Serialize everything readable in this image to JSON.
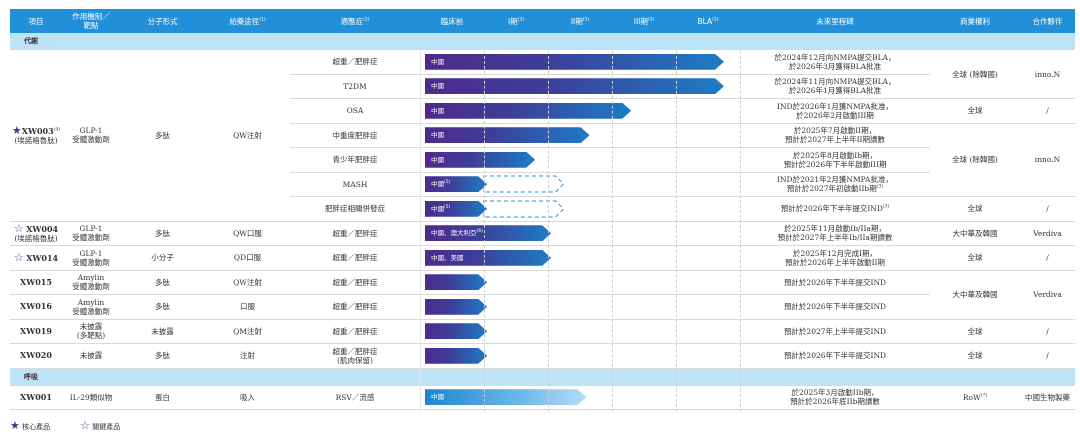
{
  "header": {
    "project": "項目",
    "mechanism": "作用機制／靶點",
    "modality": "分子形式",
    "route": "給藥途徑",
    "route_sup": "(1)",
    "indication": "適應症",
    "indication_sup": "(2)",
    "preclinical": "臨床前",
    "p1": "I期",
    "p1_sup": "(3)",
    "p2": "II期",
    "p2_sup": "(3)",
    "p3": "III期",
    "p3_sup": "(3)",
    "bla": "BLA",
    "bla_sup": "(2)",
    "milestone": "未來里程碑",
    "rights": "商業權利",
    "partner": "合作夥伴"
  },
  "sections": {
    "metabolic": "代謝",
    "respiratory": "呼吸"
  },
  "colors": {
    "header": "#2190d8",
    "section": "#bde3f7",
    "bar_start": "#4e2a8c",
    "bar_end": "#1d7cc6",
    "star": "#5b2a8c"
  },
  "phase_scale": [
    "臨床前",
    "I期",
    "II期",
    "III期",
    "BLA"
  ],
  "xw003": {
    "name": "XW003",
    "sup": "(4)",
    "alias": "(埃諾格魯肽)",
    "mech1": "GLP-1",
    "mech2": "受體激動劑",
    "modality": "多肽",
    "route": "QW注射",
    "star": "core",
    "rows": [
      {
        "indication": "超重／肥胖症",
        "region": "中國",
        "progress": 4.75,
        "m1": "於2024年12月向NMPA提交BLA，",
        "m2": "於2026年3月獲得BLA批准"
      },
      {
        "indication": "T2DM",
        "region": "中國",
        "progress": 4.75,
        "m1": "於2024年11月向NMPA提交BLA，",
        "m2": "於2026年1月獲得BLA批准"
      },
      {
        "indication": "OSA",
        "region": "中國",
        "progress": 3.3,
        "m1": "IND於2026年1月獲NMPA批准，",
        "m2": "於2026年2月啟動III期"
      },
      {
        "indication": "中重度肥胖症",
        "region": "中國",
        "progress": 2.65,
        "m1": "於2025年7月啟動II期，",
        "m2": "預計於2027年上半年II期讀數"
      },
      {
        "indication": "青少年肥胖症",
        "region": "中國",
        "progress": 1.8,
        "m1": "於2025年8月啟動Ib期，",
        "m2": "預計於2026年下半年啟動III期"
      },
      {
        "indication": "MASH",
        "region": "中國",
        "region_sup": "(5)",
        "progress": 1.05,
        "planned": 2.2,
        "m1": "IND於2021年2月獲NMPA批准，",
        "m2": "預計於2027年初啟動IIb期",
        "m2_sup": "(3)"
      },
      {
        "indication": "肥胖症相關併發症",
        "region": "中國",
        "region_sup": "(5)",
        "progress": 1.05,
        "planned": 2.2,
        "m1": "預計於2026年下半年提交IND",
        "m1_sup": "(3)"
      }
    ],
    "rights_a": "全球 (除韓國)",
    "partner_a": "inno.N",
    "rights_b": "全球",
    "partner_b": "/",
    "rights_c": "全球 (除韓國)",
    "partner_c": "inno.N",
    "rights_d": "全球",
    "partner_d": "/"
  },
  "others": [
    {
      "name": "XW004",
      "alias": "(埃諾格魯肽)",
      "star": "key",
      "mech1": "GLP-1",
      "mech2": "受體激動劑",
      "modality": "多肽",
      "route": "QW口服",
      "indication": "超重／肥胖症",
      "region": "中國、澳大利亞",
      "region_sup": "(6)",
      "progress": 2.05,
      "m1": "於2025年11月啟動Ib/IIa期，",
      "m2": "預計於2027年上半年Ib/IIa期讀數",
      "rights": "大中華及韓國",
      "partner": "Verdiva"
    },
    {
      "name": "XW014",
      "star": "key",
      "mech1": "GLP-1",
      "mech2": "受體激動劑",
      "modality": "小分子",
      "route": "QD口服",
      "indication": "超重／肥胖症",
      "region": "中國、美國",
      "progress": 2.05,
      "m1": "於2025年12月完成I期，",
      "m2": "預計於2026年上半年啟動II期",
      "rights": "全球",
      "partner": "/"
    },
    {
      "name": "XW015",
      "mech1": "Amylin",
      "mech2": "受體激動劑",
      "modality": "多肽",
      "route": "QW注射",
      "indication": "超重／肥胖症",
      "progress": 1.05,
      "m1": "預計於2026年下半年提交IND",
      "rights": "大中華及韓國",
      "partner": "Verdiva"
    },
    {
      "name": "XW016",
      "mech1": "Amylin",
      "mech2": "受體激動劑",
      "modality": "多肽",
      "route": "口服",
      "indication": "超重／肥胖症",
      "progress": 1.05,
      "m1": "預計於2026年下半年提交IND"
    },
    {
      "name": "XW019",
      "mech1": "未披露",
      "mech2": "(多靶點)",
      "modality": "未披露",
      "route": "QM注射",
      "indication": "超重／肥胖症",
      "progress": 1.05,
      "m1": "預計於2027年上半年提交IND",
      "rights": "全球",
      "partner": "/"
    },
    {
      "name": "XW020",
      "mech1": "未披露",
      "modality": "多肽",
      "route": "注射",
      "indication": "超重／肥胖症",
      "indication2": "(肌肉保留)",
      "progress": 1.05,
      "m1": "預計於2026年下半年提交IND",
      "rights": "全球",
      "partner": "/"
    }
  ],
  "xw001": {
    "name": "XW001",
    "mech1": "IL-29類似物",
    "modality": "蛋白",
    "route": "吸入",
    "indication": "RSV／流感",
    "region": "中國",
    "progress": 2.6,
    "m1": "於2025年3月啟動IIb期，",
    "m2": "預計於2026年底IIb期讀數",
    "rights": "RoW",
    "rights_sup": "(7)",
    "partner": "中國生物製藥"
  },
  "legend": {
    "core": "核心產品",
    "key": "關鍵產品"
  }
}
